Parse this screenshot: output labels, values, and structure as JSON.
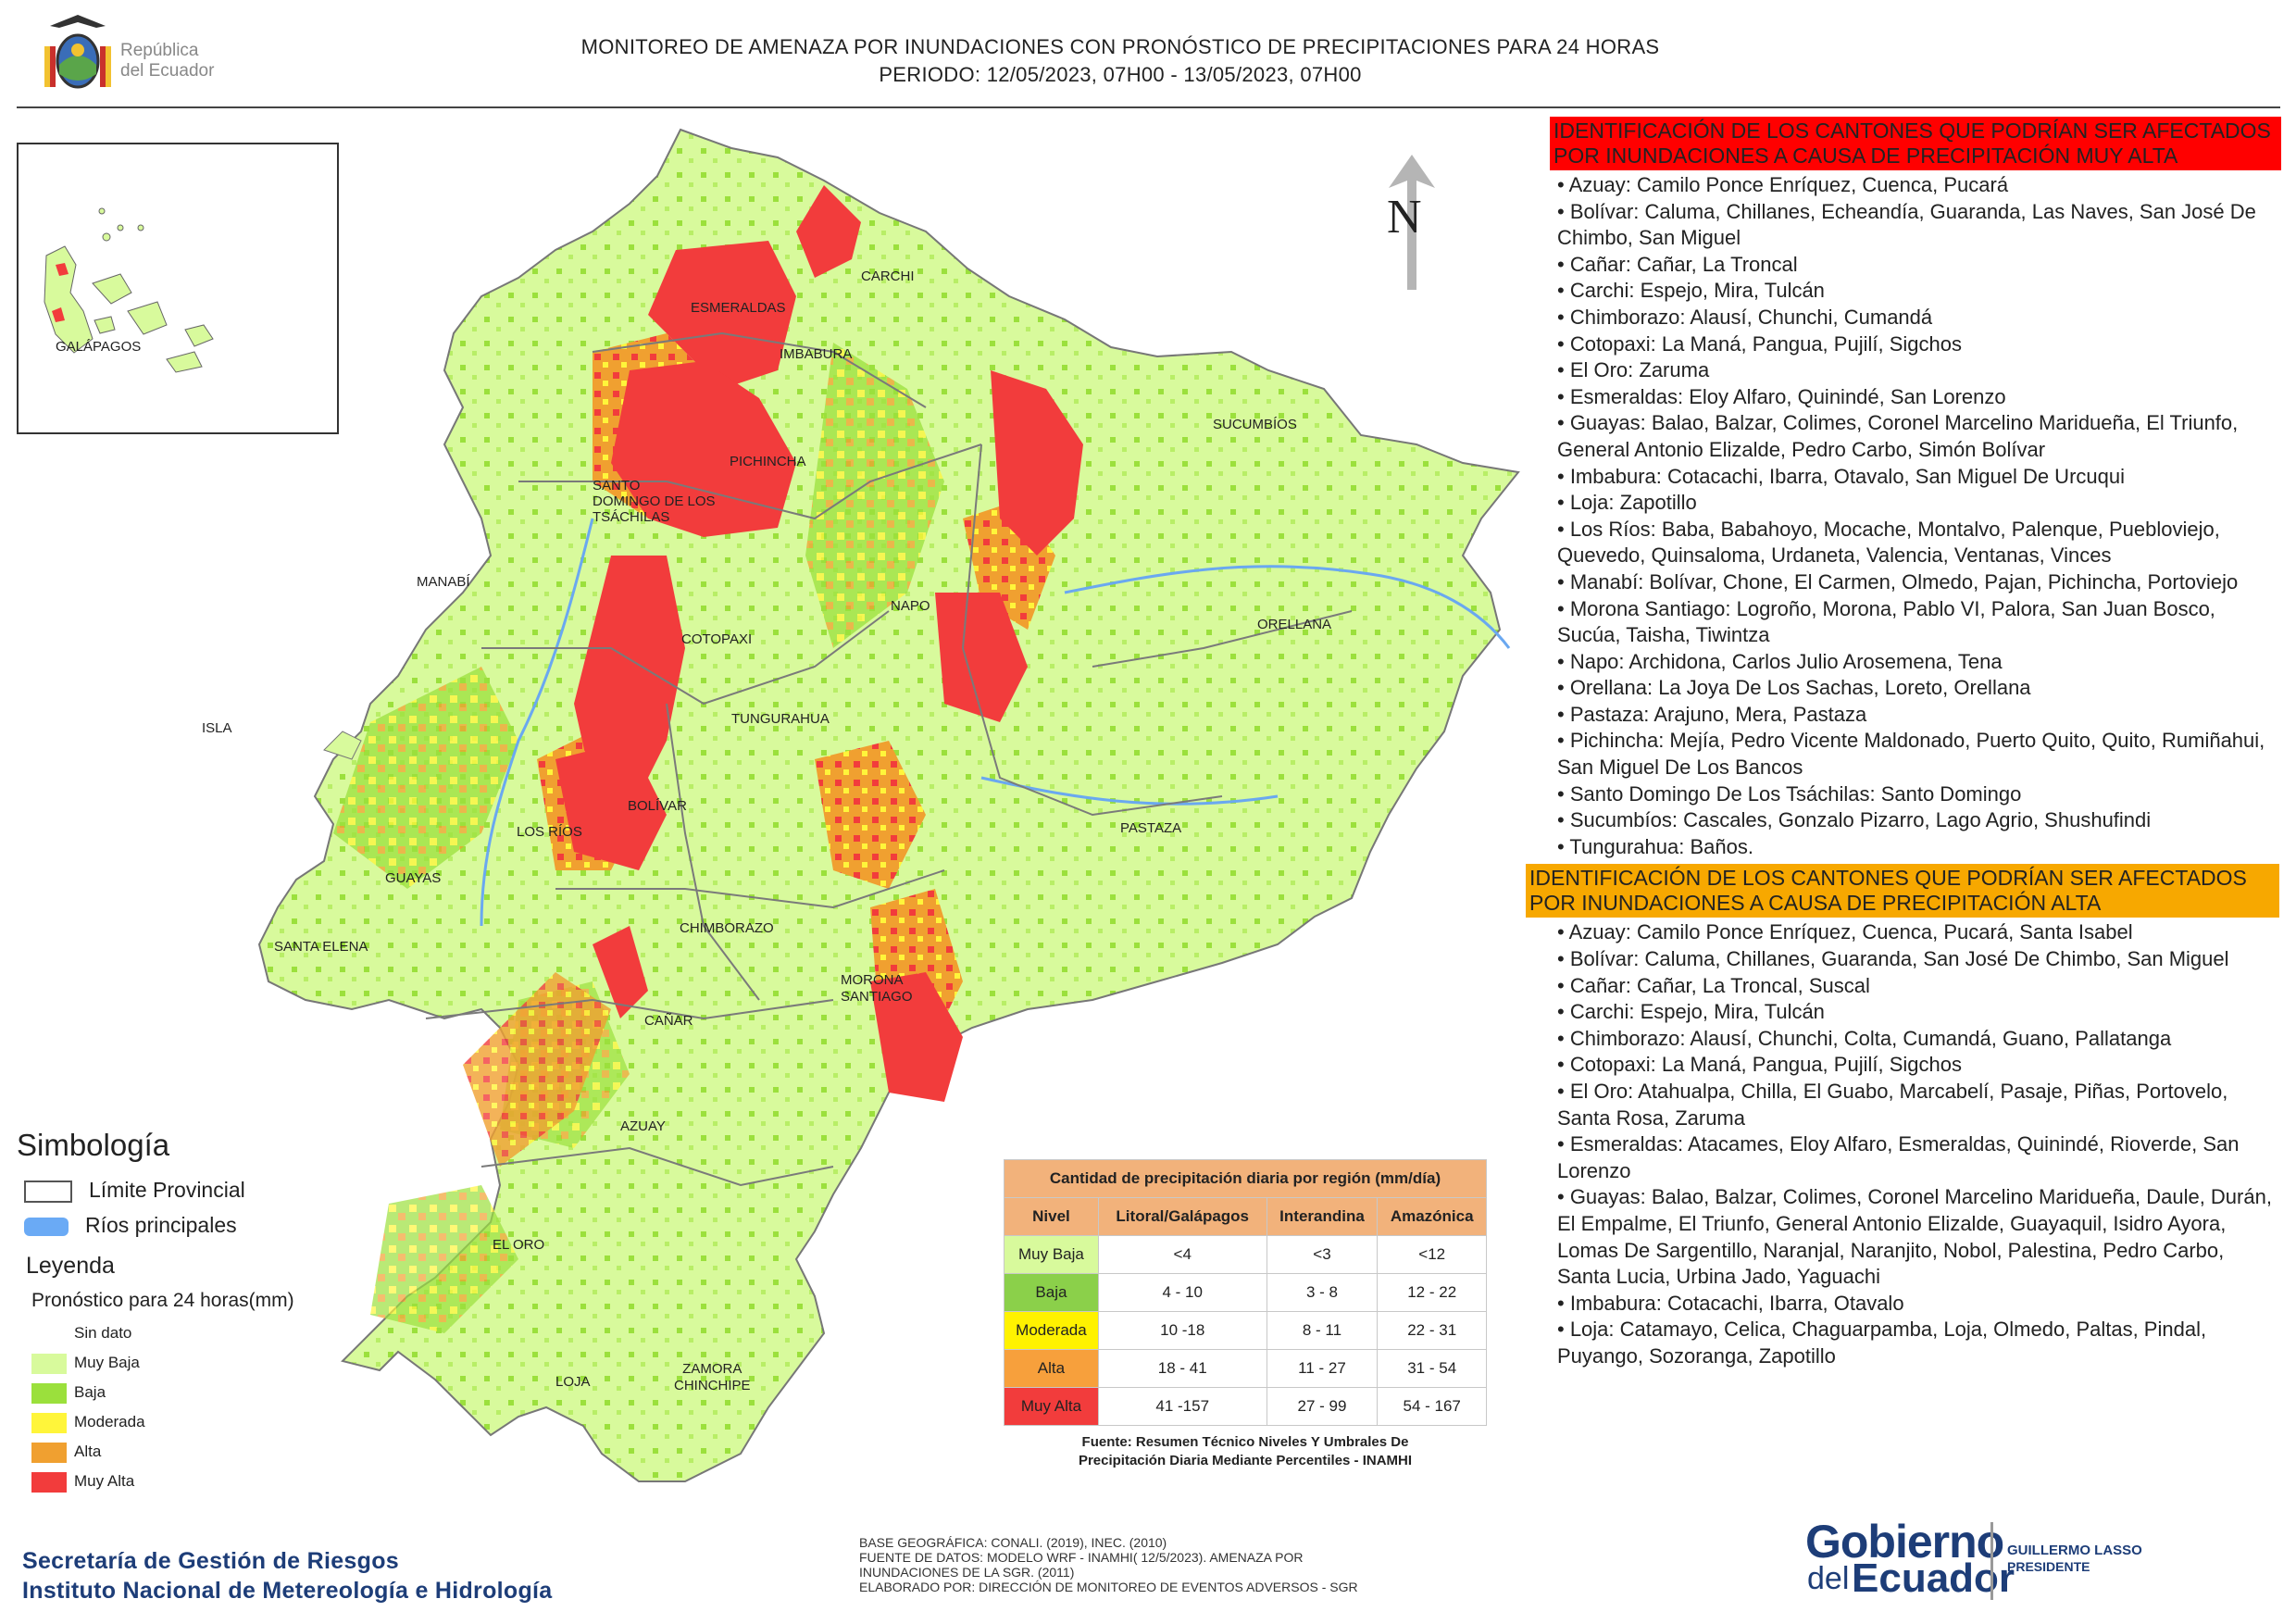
{
  "header": {
    "title_line1": "MONITOREO DE AMENAZA POR INUNDACIONES  CON PRONÓSTICO DE  PRECIPITACIONES PARA 24 HORAS",
    "title_line2": "PERIODO: 12/05/2023, 07H00 - 13/05/2023, 07H00",
    "republic_line1": "República",
    "republic_line2": "del Ecuador"
  },
  "map": {
    "north_label": "N",
    "inset_label": "GALÁPAGOS",
    "provinces": {
      "carchi": "CARCHI",
      "esmeraldas": "ESMERALDAS",
      "imbabura": "IMBABURA",
      "sucumbios": "SUCUMBÍOS",
      "pichincha": "PICHINCHA",
      "santo_domingo_1": "SANTO",
      "santo_domingo_2": "DOMINGO DE LOS",
      "santo_domingo_3": "TSÁCHILAS",
      "manabi": "MANABÍ",
      "napo": "NAPO",
      "orellana": "ORELLANA",
      "cotopaxi": "COTOPAXI",
      "isla": "ISLA",
      "tungurahua": "TUNGURAHUA",
      "bolivar": "BOLÍVAR",
      "los_rios": "LOS RÍOS",
      "pastaza": "PASTAZA",
      "guayas": "GUAYAS",
      "chimborazo": "CHIMBORAZO",
      "santa_elena": "SANTA ELENA",
      "morona_1": "MORONA",
      "morona_2": "SANTIAGO",
      "canar": "CAÑAR",
      "azuay": "AZUAY",
      "el_oro": "EL ORO",
      "loja": "LOJA",
      "zamora_1": "ZAMORA",
      "zamora_2": "CHINCHIPE"
    }
  },
  "legend": {
    "simbologia": "Simbología",
    "limite": "Límite Provincial",
    "rios": "Ríos principales",
    "leyenda": "Leyenda",
    "pronostico": "Pronóstico para 24 horas(mm)",
    "items": [
      {
        "label": "Sin dato",
        "color": "#ffffff"
      },
      {
        "label": "Muy Baja",
        "color": "#d8fa9c"
      },
      {
        "label": "Baja",
        "color": "#9be03c"
      },
      {
        "label": "Moderada",
        "color": "#fff53a"
      },
      {
        "label": "Alta",
        "color": "#f0a030"
      },
      {
        "label": "Muy Alta",
        "color": "#f23c3c"
      }
    ]
  },
  "table": {
    "title": "Cantidad de precipitación diaria por región (mm/día)",
    "headers": [
      "Nivel",
      "Litoral/Galápagos",
      "Interandina",
      "Amazónica"
    ],
    "rows": [
      {
        "nivel": "Muy Baja",
        "color": "#d8fa9c",
        "values": [
          "<4",
          "<3",
          "<12"
        ]
      },
      {
        "nivel": "Baja",
        "color": "#8bd04a",
        "values": [
          "4 - 10",
          "3 - 8",
          "12 - 22"
        ]
      },
      {
        "nivel": "Moderada",
        "color": "#fff200",
        "values": [
          "10 -18",
          "8 - 11",
          "22 - 31"
        ]
      },
      {
        "nivel": "Alta",
        "color": "#f7a03c",
        "values": [
          "18 - 41",
          "11 - 27",
          "31 - 54"
        ]
      },
      {
        "nivel": "Muy Alta",
        "color": "#f23c3c",
        "values": [
          "41 -157",
          "27 - 99",
          "54 - 167"
        ]
      }
    ],
    "source_line1": "Fuente: Resumen Técnico Niveles Y Umbrales De",
    "source_line2": "Precipitación Diaria Mediante Percentiles - INAMHI"
  },
  "footer": {
    "sgr_line1": "Secretaría de Gestión de Riesgos",
    "sgr_line2": "Instituto Nacional de Metereología e Hidrología",
    "base_line1": "BASE GEOGRÁFICA: CONALI. (2019), INEC. (2010)",
    "base_line2": "FUENTE DE DATOS: MODELO WRF - INAMHI( 12/5/2023).  AMENAZA POR",
    "base_line3": "INUNDACIONES DE LA SGR. (2011)",
    "base_line4": "ELABORADO POR: DIRECCIÓN DE MONITOREO DE EVENTOS ADVERSOS - SGR",
    "gobierno_1": "Gobierno",
    "gobierno_2": "del",
    "gobierno_3": "Ecuador",
    "president_1": "GUILLERMO LASSO",
    "president_2": "PRESIDENTE"
  },
  "panel": {
    "muy_alta_header": "IDENTIFICACIÓN DE LOS CANTONES QUE PODRÍAN SER AFECTADOS POR INUNDACIONES  A CAUSA DE PRECIPITACIÓN MUY ALTA",
    "muy_alta_color": "#ff0000",
    "muy_alta_items": [
      "• Azuay: Camilo Ponce Enríquez, Cuenca, Pucará",
      "• Bolívar: Caluma, Chillanes, Echeandía, Guaranda, Las Naves, San José De Chimbo, San Miguel",
      "• Cañar: Cañar, La Troncal",
      "• Carchi: Espejo, Mira, Tulcán",
      "• Chimborazo: Alausí, Chunchi, Cumandá",
      "• Cotopaxi: La Maná, Pangua, Pujilí, Sigchos",
      "• El Oro: Zaruma",
      "• Esmeraldas: Eloy Alfaro, Quinindé, San Lorenzo",
      "• Guayas: Balao, Balzar, Colimes, Coronel Marcelino Maridueña, El Triunfo, General Antonio Elizalde, Pedro Carbo, Simón Bolívar",
      "• Imbabura: Cotacachi, Ibarra, Otavalo, San Miguel De Urcuqui",
      "• Loja: Zapotillo",
      "• Los Ríos: Baba, Babahoyo, Mocache, Montalvo, Palenque, Puebloviejo, Quevedo, Quinsaloma, Urdaneta, Valencia, Ventanas, Vinces",
      "• Manabí: Bolívar, Chone, El Carmen, Olmedo, Pajan, Pichincha, Portoviejo",
      "• Morona Santiago: Logroño, Morona, Pablo VI, Palora, San Juan Bosco, Sucúa, Taisha, Tiwintza",
      "• Napo: Archidona, Carlos Julio Arosemena, Tena",
      "• Orellana: La Joya De Los Sachas, Loreto, Orellana",
      "• Pastaza: Arajuno, Mera, Pastaza",
      "• Pichincha: Mejía, Pedro Vicente Maldonado, Puerto Quito, Quito, Rumiñahui, San Miguel De Los Bancos",
      "• Santo Domingo De Los Tsáchilas: Santo Domingo",
      "• Sucumbíos: Cascales, Gonzalo Pizarro, Lago Agrio, Shushufindi",
      "• Tungurahua: Baños."
    ],
    "alta_header": "IDENTIFICACIÓN DE LOS CANTONES QUE  PODRÍAN SER AFECTADOS POR INUNDACIONES  A CAUSA DE PRECIPITACIÓN ALTA",
    "alta_color": "#f7a800",
    "alta_items": [
      "• Azuay: Camilo Ponce Enríquez, Cuenca, Pucará, Santa Isabel",
      "• Bolívar: Caluma, Chillanes, Guaranda, San José De Chimbo, San Miguel",
      "• Cañar: Cañar, La Troncal, Suscal",
      "• Carchi: Espejo, Mira, Tulcán",
      "• Chimborazo: Alausí, Chunchi, Colta, Cumandá, Guano, Pallatanga",
      "• Cotopaxi: La Maná, Pangua, Pujilí, Sigchos",
      "• El Oro: Atahualpa, Chilla, El Guabo, Marcabelí, Pasaje, Piñas, Portovelo, Santa Rosa, Zaruma",
      "• Esmeraldas: Atacames, Eloy Alfaro, Esmeraldas, Quinindé, Rioverde, San Lorenzo",
      "• Guayas: Balao, Balzar, Colimes, Coronel Marcelino Maridueña, Daule, Durán, El Empalme, El Triunfo, General Antonio Elizalde, Guayaquil, Isidro Ayora, Lomas De Sargentillo, Naranjal, Naranjito, Nobol, Palestina, Pedro Carbo, Santa Lucia, Urbina Jado, Yaguachi",
      "• Imbabura: Cotacachi, Ibarra, Otavalo",
      "• Loja: Catamayo, Celica, Chaguarpamba, Loja, Olmedo, Paltas, Pindal, Puyango, Sozoranga, Zapotillo"
    ]
  }
}
